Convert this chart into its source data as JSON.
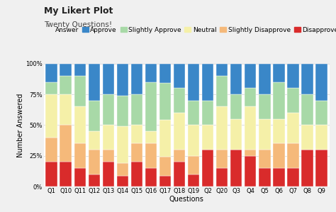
{
  "title": "My Likert Plot",
  "subtitle": "Twenty Questions!",
  "xlabel": "Questions",
  "ylabel": "Number Answered",
  "categories": [
    "Q1",
    "Q10",
    "Q11",
    "Q12",
    "Q13",
    "Q14",
    "Q15",
    "Q16",
    "Q17",
    "Q18",
    "Q19",
    "Q2",
    "Q20",
    "Q3",
    "Q4",
    "Q5",
    "Q6",
    "Q7",
    "Q8",
    "Q9"
  ],
  "layers": {
    "Disapprove": [
      20,
      20,
      15,
      10,
      20,
      9,
      20,
      15,
      9,
      20,
      10,
      30,
      15,
      30,
      25,
      15,
      15,
      15,
      30,
      30
    ],
    "Slightly Disapprove": [
      20,
      30,
      20,
      20,
      10,
      10,
      15,
      20,
      15,
      10,
      15,
      0,
      15,
      0,
      5,
      15,
      20,
      20,
      0,
      0
    ],
    "Neutral": [
      35,
      25,
      30,
      15,
      20,
      30,
      15,
      10,
      30,
      30,
      25,
      20,
      35,
      25,
      35,
      25,
      20,
      25,
      20,
      20
    ],
    "Slightly Approve": [
      10,
      15,
      25,
      25,
      25,
      25,
      25,
      40,
      30,
      20,
      20,
      20,
      25,
      20,
      15,
      20,
      30,
      20,
      25,
      20
    ],
    "Approve": [
      15,
      10,
      10,
      30,
      25,
      26,
      25,
      15,
      16,
      20,
      30,
      30,
      10,
      25,
      20,
      25,
      15,
      20,
      25,
      30
    ]
  },
  "colors": {
    "Approve": "#3a87c8",
    "Slightly Approve": "#a8d9a7",
    "Neutral": "#f5f0a8",
    "Slightly Disapprove": "#f5b97a",
    "Disapprove": "#d92b2b"
  },
  "legend_order": [
    "Approve",
    "Slightly Approve",
    "Neutral",
    "Slightly Disapprove",
    "Disapprove"
  ],
  "stack_order": [
    "Disapprove",
    "Slightly Disapprove",
    "Neutral",
    "Slightly Approve",
    "Approve"
  ],
  "ylim": [
    0,
    100
  ],
  "yticks": [
    0,
    25,
    50,
    75,
    100
  ],
  "ytick_labels": [
    "0%",
    "25%",
    "50%",
    "75%",
    "100%"
  ],
  "plot_bg": "#ffffff",
  "fig_bg": "#f0f0f0",
  "title_fontsize": 9,
  "subtitle_fontsize": 7.5,
  "axis_label_fontsize": 7,
  "tick_fontsize": 6,
  "legend_fontsize": 6.5
}
